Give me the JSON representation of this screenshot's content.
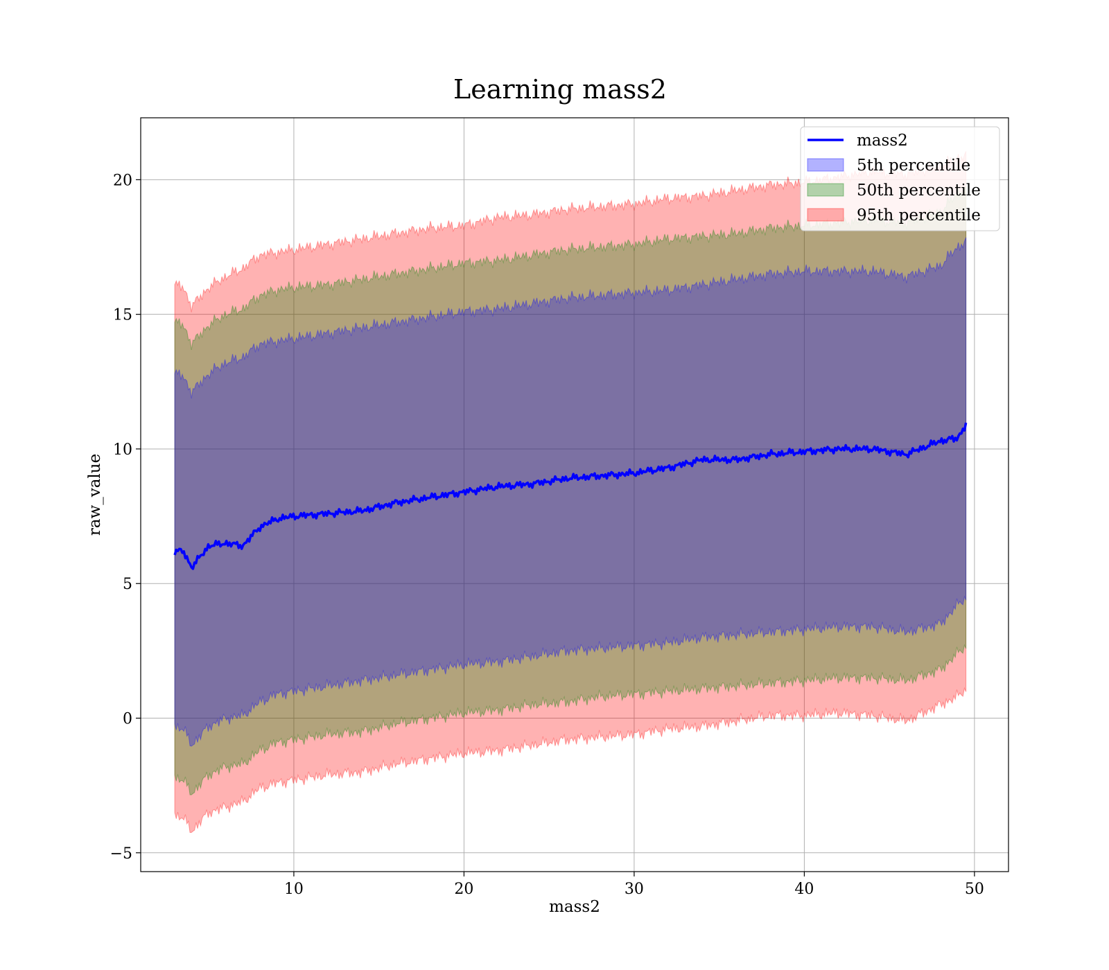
{
  "chart_data": {
    "type": "area",
    "title": "Learning mass2",
    "xlabel": "mass2",
    "ylabel": "raw_value",
    "xlim": [
      1,
      52
    ],
    "ylim": [
      -5.7,
      22.3
    ],
    "x_ticks": [
      10,
      20,
      30,
      40,
      50
    ],
    "x_tick_labels": [
      "10",
      "20",
      "30",
      "40",
      "50"
    ],
    "y_ticks": [
      -5,
      0,
      5,
      10,
      15,
      20
    ],
    "y_tick_labels": [
      "−5",
      "0",
      "5",
      "10",
      "15",
      "20"
    ],
    "grid": true,
    "legend_position": "top-right",
    "legend": [
      "mass2",
      "5th percentile",
      "50th percentile",
      "95th percentile"
    ],
    "colors": {
      "line": "#0000ff",
      "band_5": "#0000ff",
      "band_50": "#008000",
      "band_95": "#ff0000",
      "grid": "#b0b0b0"
    },
    "x": [
      3,
      3.5,
      4,
      5,
      6,
      7,
      8,
      9,
      10,
      12,
      14,
      16,
      18,
      20,
      22,
      24,
      26,
      28,
      30,
      32,
      34,
      36,
      38,
      40,
      42,
      44,
      46,
      48,
      49,
      49.5
    ],
    "series": [
      {
        "legend": "mass2",
        "kind": "line",
        "values": [
          6.2,
          6.2,
          5.6,
          6.4,
          6.5,
          6.4,
          7.1,
          7.4,
          7.5,
          7.6,
          7.7,
          8.0,
          8.2,
          8.4,
          8.6,
          8.7,
          8.9,
          9.0,
          9.1,
          9.3,
          9.6,
          9.6,
          9.8,
          9.9,
          10.0,
          10.0,
          9.8,
          10.3,
          10.4,
          10.9
        ]
      },
      {
        "legend": "95th percentile",
        "kind": "band",
        "upper": [
          16.1,
          16.0,
          15.3,
          16.0,
          16.4,
          16.7,
          17.2,
          17.3,
          17.4,
          17.6,
          17.8,
          18.0,
          18.2,
          18.3,
          18.6,
          18.7,
          18.9,
          19.0,
          19.1,
          19.3,
          19.4,
          19.6,
          19.8,
          19.9,
          20.1,
          20.3,
          20.2,
          20.5,
          20.8,
          20.9
        ],
        "lower": [
          -3.6,
          -3.7,
          -4.2,
          -3.5,
          -3.3,
          -3.1,
          -2.6,
          -2.4,
          -2.3,
          -2.1,
          -2.0,
          -1.7,
          -1.5,
          -1.3,
          -1.2,
          -1.0,
          -0.8,
          -0.7,
          -0.6,
          -0.4,
          -0.3,
          -0.1,
          0.1,
          0.1,
          0.2,
          0.1,
          -0.1,
          0.5,
          0.8,
          1.1
        ]
      },
      {
        "legend": "50th percentile",
        "kind": "band",
        "upper": [
          14.7,
          14.6,
          13.9,
          14.6,
          15.0,
          15.2,
          15.7,
          15.9,
          16.0,
          16.1,
          16.3,
          16.5,
          16.7,
          16.9,
          17.0,
          17.2,
          17.4,
          17.5,
          17.6,
          17.8,
          17.9,
          18.0,
          18.2,
          18.3,
          18.4,
          18.5,
          18.4,
          18.8,
          19.5,
          19.6
        ],
        "lower": [
          -2.2,
          -2.3,
          -2.8,
          -2.1,
          -1.8,
          -1.7,
          -1.2,
          -0.9,
          -0.8,
          -0.6,
          -0.5,
          -0.2,
          0.0,
          0.2,
          0.3,
          0.5,
          0.6,
          0.8,
          0.9,
          1.0,
          1.1,
          1.2,
          1.3,
          1.4,
          1.5,
          1.5,
          1.4,
          1.8,
          2.4,
          2.7
        ]
      },
      {
        "legend": "5th percentile",
        "kind": "band",
        "upper": [
          12.8,
          12.7,
          12.1,
          12.8,
          13.2,
          13.4,
          13.9,
          14.0,
          14.1,
          14.3,
          14.5,
          14.7,
          14.9,
          15.1,
          15.2,
          15.4,
          15.6,
          15.7,
          15.8,
          15.9,
          16.1,
          16.3,
          16.5,
          16.6,
          16.6,
          16.6,
          16.4,
          16.8,
          17.5,
          17.7
        ],
        "lower": [
          -0.3,
          -0.4,
          -1.0,
          -0.3,
          0.0,
          0.1,
          0.6,
          0.9,
          1.0,
          1.2,
          1.4,
          1.6,
          1.8,
          2.0,
          2.1,
          2.3,
          2.5,
          2.6,
          2.7,
          2.8,
          3.0,
          3.1,
          3.2,
          3.3,
          3.4,
          3.4,
          3.2,
          3.5,
          4.2,
          4.5
        ]
      }
    ]
  }
}
